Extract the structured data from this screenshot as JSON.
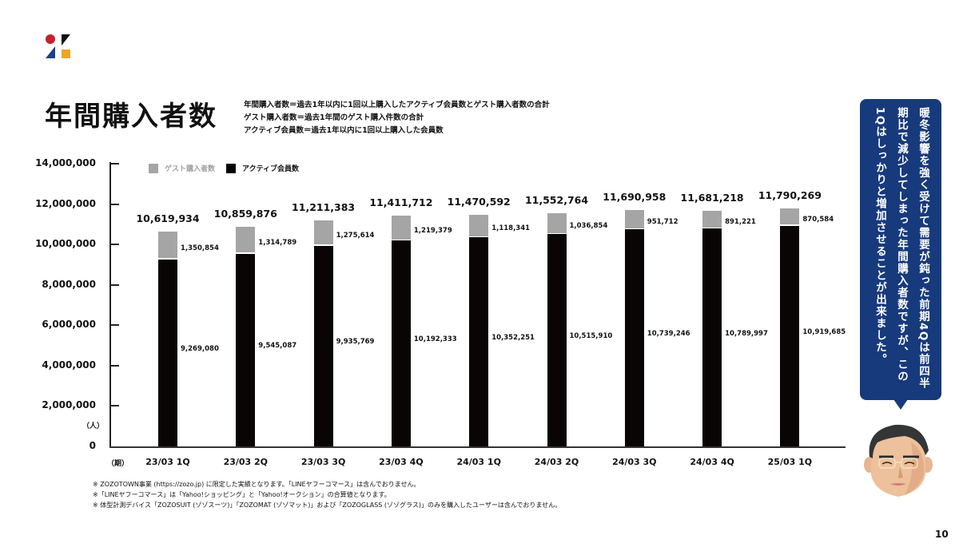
{
  "logo": {
    "name": "zozo-logo"
  },
  "header": {
    "title": "年間購入者数",
    "definitions": [
      "年間購入者数＝過去1年以内に1回以上購入したアクティブ会員数とゲスト購入者数の合計",
      "ゲスト購入者数＝過去1年間のゲスト購入件数の合計",
      "アクティブ会員数＝過去1年以内に1回以上購入した会員数"
    ]
  },
  "legend": {
    "guest": "ゲスト購入者数",
    "active": "アクティブ会員数"
  },
  "axis": {
    "y_unit": "（人）",
    "x_unit": "（期）",
    "y_ticks": [
      "14,000,000",
      "12,000,000",
      "10,000,000",
      "8,000,000",
      "6,000,000",
      "4,000,000",
      "2,000,000",
      "0"
    ]
  },
  "colors": {
    "guest": "#a5a5a5",
    "active": "#0a0505",
    "bubble": "#173a7c",
    "logo_red": "#c8202b",
    "logo_blue": "#1d3f86",
    "logo_yellow": "#eaa625"
  },
  "bars": [
    {
      "period": "23/03 1Q",
      "total": "10,619,934",
      "guest": "1,350,854",
      "active": "9,269,080"
    },
    {
      "period": "23/03 2Q",
      "total": "10,859,876",
      "guest": "1,314,789",
      "active": "9,545,087"
    },
    {
      "period": "23/03 3Q",
      "total": "11,211,383",
      "guest": "1,275,614",
      "active": "9,935,769"
    },
    {
      "period": "23/03 4Q",
      "total": "11,411,712",
      "guest": "1,219,379",
      "active": "10,192,333"
    },
    {
      "period": "24/03 1Q",
      "total": "11,470,592",
      "guest": "1,118,341",
      "active": "10,352,251"
    },
    {
      "period": "24/03 2Q",
      "total": "11,552,764",
      "guest": "1,036,854",
      "active": "10,515,910"
    },
    {
      "period": "24/03 3Q",
      "total": "11,690,958",
      "guest": "951,712",
      "active": "10,739,246"
    },
    {
      "period": "24/03 4Q",
      "total": "11,681,218",
      "guest": "891,221",
      "active": "10,789,997"
    },
    {
      "period": "25/03 1Q",
      "total": "11,790,269",
      "guest": "870,584",
      "active": "10,919,685"
    }
  ],
  "notes": [
    "※ ZOZOTOWN事業 (https://zozo.jp) に限定した実績となります。「LINEヤフーコマース」は含んでおりません。",
    "※「LINEヤフーコマース」は「Yahoo!ショッピング」と「Yahoo!オークション」の合算値となります。",
    "※ 体型計測デバイス「ZOZOSUIT (ゾゾスーツ)」「ZOZOMAT (ゾゾマット)」および「ZOZOGLASS (ゾゾグラス)」のみを購入したユーザーは含んでおりません。"
  ],
  "bubble": {
    "text": "暖冬影響を強く受けて需要が鈍った前期4Qは前四半期比で減少してしまった年間購入者数ですが、この1Qはしっかりと増加させることが出来ました。"
  },
  "page_number": "10",
  "chart_data": {
    "type": "bar",
    "stacked": true,
    "title": "年間購入者数",
    "xlabel": "（期）",
    "ylabel": "（人）",
    "ylim": [
      0,
      14000000
    ],
    "yticks": [
      0,
      2000000,
      4000000,
      6000000,
      8000000,
      10000000,
      12000000,
      14000000
    ],
    "grid": false,
    "legend_position": "top-left",
    "categories": [
      "23/03 1Q",
      "23/03 2Q",
      "23/03 3Q",
      "23/03 4Q",
      "24/03 1Q",
      "24/03 2Q",
      "24/03 3Q",
      "24/03 4Q",
      "25/03 1Q"
    ],
    "series": [
      {
        "name": "アクティブ会員数",
        "color": "#0a0505",
        "values": [
          9269080,
          9545087,
          9935769,
          10192333,
          10352251,
          10515910,
          10739246,
          10789997,
          10919685
        ]
      },
      {
        "name": "ゲスト購入者数",
        "color": "#a5a5a5",
        "values": [
          1350854,
          1314789,
          1275614,
          1219379,
          1118341,
          1036854,
          951712,
          891221,
          870584
        ]
      }
    ],
    "totals": [
      10619934,
      10859876,
      11211383,
      11411712,
      11470592,
      11552764,
      11690958,
      11681218,
      11790269
    ]
  }
}
